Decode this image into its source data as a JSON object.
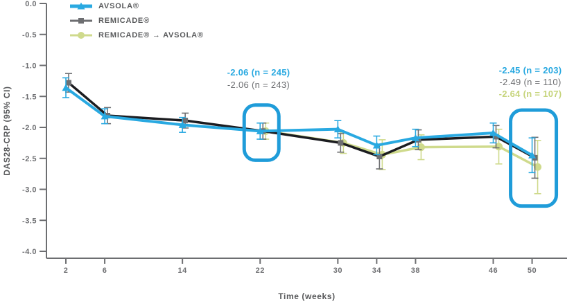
{
  "palette": {
    "accent_blue": "#29A9E1",
    "box_blue": "#1F9CD9",
    "dark_line": "#1B1C20",
    "gray": "#6D6E71",
    "label_gray": "#58595B",
    "green": "#CFDA8C",
    "green_text": "#C6D47B",
    "axis": "#6D6E71"
  },
  "chart_data": {
    "type": "line",
    "title": "",
    "xlabel": "Time (weeks)",
    "ylabel": "DAS28-CRP (95% CI)",
    "x_ticks": [
      2,
      6,
      14,
      22,
      30,
      34,
      38,
      46,
      50
    ],
    "xlim": [
      0,
      53.6
    ],
    "ylim": [
      -4.0,
      0.0
    ],
    "y_tick_step": 0.5,
    "grid": false,
    "legend_position": "top-left",
    "series": [
      {
        "name": "AVSOLA®",
        "marker": "triangle",
        "color": "#29A9E1",
        "x": [
          2,
          6,
          14,
          22,
          30,
          34,
          38,
          46,
          50
        ],
        "values": [
          -1.36,
          -1.82,
          -1.96,
          -2.06,
          -2.03,
          -2.29,
          -2.17,
          -2.09,
          -2.45
        ],
        "ci": [
          0.16,
          0.12,
          0.12,
          0.13,
          0.14,
          0.15,
          0.14,
          0.16,
          0.28
        ]
      },
      {
        "name": "REMICADE®",
        "marker": "square",
        "line_color": "#1B1C20",
        "marker_color": "#6D6E71",
        "x": [
          2,
          6,
          14,
          22,
          30,
          34,
          38,
          46,
          50
        ],
        "values": [
          -1.28,
          -1.81,
          -1.89,
          -2.06,
          -2.25,
          -2.47,
          -2.2,
          -2.15,
          -2.49
        ],
        "ci": [
          0.15,
          0.13,
          0.12,
          0.13,
          0.15,
          0.2,
          0.16,
          0.18,
          0.33
        ]
      },
      {
        "name": "REMICADE® → AVSOLA®",
        "marker": "circle",
        "color": "#CFDA8C",
        "x": [
          22,
          30,
          34,
          38,
          46,
          50
        ],
        "values": [
          -2.06,
          -2.25,
          -2.44,
          -2.32,
          -2.31,
          -2.64
        ],
        "ci": [
          0.13,
          0.17,
          0.24,
          0.2,
          0.28,
          0.43
        ]
      }
    ],
    "annotations": [
      {
        "week": 22,
        "lines": [
          {
            "text": "-2.06 (n = 245)",
            "series": "AVSOLA®",
            "bold": true
          },
          {
            "text": "-2.06 (n = 243)",
            "series": "REMICADE®",
            "bold": false
          }
        ]
      },
      {
        "week": 50,
        "lines": [
          {
            "text": "-2.45 (n = 203)",
            "series": "AVSOLA®",
            "bold": true
          },
          {
            "text": "-2.49 (n = 110)",
            "series": "REMICADE®",
            "bold": false
          },
          {
            "text": "-2.64 (n = 107)",
            "series": "REMICADE® → AVSOLA®",
            "bold": true
          }
        ]
      }
    ],
    "highlights": [
      {
        "week": 22,
        "value_top": -1.64,
        "value_bottom": -2.53
      },
      {
        "week": 50,
        "value_top": -1.72,
        "value_bottom": -3.27
      }
    ]
  }
}
